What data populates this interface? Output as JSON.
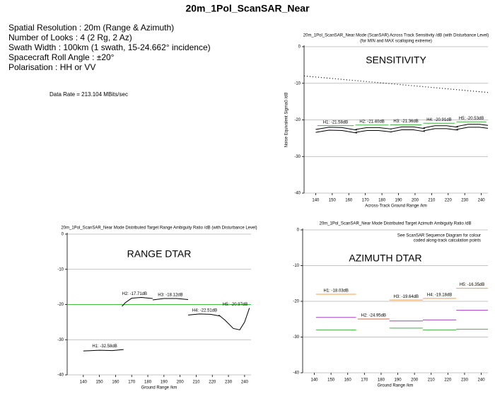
{
  "title": "20m_1Pol_ScanSAR_Near",
  "info": [
    "Spatial Resolution : 20m (Range & Azimuth)",
    "Number of Looks : 4 (2 Rg, 2 Az)",
    "Swath Width : 100km (1 swath, 15-24.662° incidence)",
    "Spacecraft Roll Angle : ±20°",
    "Polarisation : HH or VV"
  ],
  "data_rate": "Data Rate = 213.104 MBits/sec",
  "chart_data": [
    {
      "type": "line",
      "title": "20m_1Pol_ScanSAR_Near Mode (ScanSAR) Across Track Sensitivity /dB (with Disturbance Level)",
      "subtitle": "(for MIN and MAX scalloping extreme)",
      "label": "SENSITIVITY",
      "x_label": "Across-Track Ground Range /km",
      "y_label": "Noise Equivalent Sigma0 /dB",
      "xlim": [
        133,
        244
      ],
      "xticks": [
        140,
        150,
        160,
        170,
        180,
        190,
        200,
        210,
        220,
        230,
        240
      ],
      "ylim": [
        -40,
        0
      ],
      "yticks": [
        0,
        -10,
        -20,
        -30,
        -40
      ],
      "grid": true,
      "series": [
        {
          "color": "#000000",
          "style": "dotted",
          "x": [
            133,
            244
          ],
          "values": [
            -8,
            -12.5
          ]
        },
        {
          "name": "H1: -21.58dB",
          "color": "#40b040",
          "x": [
            141,
            163
          ],
          "values": [
            -21.58,
            -21.58
          ]
        },
        {
          "name": "H2: -21.40dB",
          "color": "#40b040",
          "x": [
            164,
            184
          ],
          "values": [
            -21.4,
            -21.4
          ]
        },
        {
          "name": "H3: -21.36dB",
          "color": "#40b040",
          "x": [
            185,
            204
          ],
          "values": [
            -21.36,
            -21.36
          ]
        },
        {
          "name": "H4: -20.91dB",
          "color": "#40b040",
          "x": [
            205,
            224
          ],
          "values": [
            -20.91,
            -20.91
          ]
        },
        {
          "name": "H5: -20.53dB",
          "color": "#40b040",
          "x": [
            225,
            243
          ],
          "values": [
            -20.53,
            -20.53
          ]
        },
        {
          "color": "#000000",
          "x": [
            140,
            148,
            156,
            165
          ],
          "values": [
            -22.6,
            -22.0,
            -22.1,
            -22.8
          ]
        },
        {
          "color": "#000000",
          "x": [
            140,
            148,
            156,
            165
          ],
          "values": [
            -23.4,
            -22.8,
            -22.9,
            -23.6
          ]
        },
        {
          "color": "#000000",
          "x": [
            164,
            171,
            178,
            186
          ],
          "values": [
            -22.6,
            -22.1,
            -22.1,
            -22.5
          ]
        },
        {
          "color": "#000000",
          "x": [
            164,
            171,
            178,
            186
          ],
          "values": [
            -23.4,
            -22.9,
            -22.9,
            -23.3
          ]
        },
        {
          "color": "#000000",
          "x": [
            185,
            192,
            199,
            206
          ],
          "values": [
            -22.5,
            -21.9,
            -21.9,
            -22.4
          ]
        },
        {
          "color": "#000000",
          "x": [
            185,
            192,
            199,
            206
          ],
          "values": [
            -23.3,
            -22.7,
            -22.7,
            -23.2
          ]
        },
        {
          "color": "#000000",
          "x": [
            205,
            212,
            219,
            226
          ],
          "values": [
            -22.2,
            -21.6,
            -21.6,
            -22.0
          ]
        },
        {
          "color": "#000000",
          "x": [
            205,
            212,
            219,
            226
          ],
          "values": [
            -23.0,
            -22.4,
            -22.4,
            -22.8
          ]
        },
        {
          "color": "#000000",
          "x": [
            225,
            232,
            239,
            244
          ],
          "values": [
            -21.8,
            -21.2,
            -21.2,
            -21.5
          ]
        },
        {
          "color": "#000000",
          "x": [
            225,
            232,
            239,
            244
          ],
          "values": [
            -22.6,
            -22.0,
            -22.0,
            -22.3
          ]
        }
      ]
    },
    {
      "type": "line",
      "title": "20m_1Pol_ScanSAR_Near Mode Distributed Target Range Ambiguity Ratio /dB (with Disturbance Level)",
      "label": "RANGE DTAR",
      "x_label": "Ground Range /km",
      "xlim": [
        130,
        244
      ],
      "xticks": [
        140,
        150,
        160,
        170,
        180,
        190,
        200,
        210,
        220,
        230,
        240
      ],
      "ylim": [
        -40,
        0
      ],
      "yticks": [
        0,
        -10,
        -20,
        -30,
        -40
      ],
      "grid": true,
      "series": [
        {
          "color": "#40c040",
          "x": [
            130,
            244
          ],
          "values": [
            -20,
            -20
          ]
        },
        {
          "name": "H1: -32.58dB",
          "color": "#000000",
          "x": [
            140,
            150,
            158,
            165
          ],
          "values": [
            -33.2,
            -33.0,
            -33.1,
            -32.8
          ]
        },
        {
          "name": "H2: -17.71dB",
          "color": "#000000",
          "x": [
            164,
            166,
            170,
            176,
            183
          ],
          "values": [
            -20.5,
            -19.5,
            -18.2,
            -18.0,
            -18.3
          ]
        },
        {
          "name": "H3: -18.12dB",
          "color": "#000000",
          "x": [
            183,
            190,
            198,
            205
          ],
          "values": [
            -18.7,
            -18.3,
            -18.3,
            -18.6
          ]
        },
        {
          "name": "H4: -22.51dB",
          "color": "#000000",
          "x": [
            205,
            212,
            219,
            225
          ],
          "values": [
            -23.0,
            -22.7,
            -22.8,
            -23.3
          ]
        },
        {
          "name": "H5: -20.97dB",
          "color": "#000000",
          "x": [
            224,
            228,
            233,
            237,
            240,
            243
          ],
          "values": [
            -23.0,
            -24.5,
            -26.8,
            -27.2,
            -25.0,
            -21.0
          ]
        }
      ]
    },
    {
      "type": "line",
      "title": "20m_1Pol_ScanSAR_Near Mode Distributed Target Azimuth Ambiguity Ratio /dB",
      "subtitle": "See ScanSAR Sequence Diagram for colour",
      "subtitle2": "coded along-track calculation points",
      "label": "AZIMUTH DTAR",
      "x_label": "Ground Range /km",
      "xlim": [
        133,
        244
      ],
      "xticks": [
        140,
        150,
        160,
        170,
        180,
        190,
        200,
        210,
        220,
        230,
        240
      ],
      "ylim": [
        -40,
        0
      ],
      "yticks": [
        0,
        -10,
        -20,
        -30,
        -40
      ],
      "grid": true,
      "series": [
        {
          "name": "H1: -18.03dB",
          "color": "#f0a040",
          "x": [
            141,
            165
          ],
          "values": [
            -18.03,
            -18.03
          ]
        },
        {
          "name": "H2: -24.95dB",
          "color": "#c07040",
          "x": [
            166,
            185
          ],
          "values": [
            -24.95,
            -24.95
          ]
        },
        {
          "name": "H3: -19.64dB",
          "color": "#f0a040",
          "x": [
            185,
            205
          ],
          "values": [
            -19.64,
            -19.64
          ]
        },
        {
          "name": "H4: -19.18dB",
          "color": "#f0a040",
          "x": [
            205,
            225
          ],
          "values": [
            -19.18,
            -19.18
          ]
        },
        {
          "name": "H5: -16.35dB",
          "color": "#f0a040",
          "x": [
            225,
            244
          ],
          "values": [
            -16.35,
            -16.35
          ]
        },
        {
          "color": "#a040c0",
          "x": [
            141,
            165
          ],
          "values": [
            -24.5,
            -24.5
          ]
        },
        {
          "color": "#a040c0",
          "x": [
            185,
            205
          ],
          "values": [
            -25.5,
            -25.5
          ]
        },
        {
          "color": "#a040c0",
          "x": [
            205,
            225
          ],
          "values": [
            -25.2,
            -25.2
          ]
        },
        {
          "color": "#a040c0",
          "x": [
            225,
            244
          ],
          "values": [
            -22.5,
            -22.5
          ]
        },
        {
          "color": "#40b040",
          "x": [
            141,
            165
          ],
          "values": [
            -28,
            -28
          ]
        },
        {
          "color": "#40b040",
          "x": [
            185,
            205
          ],
          "values": [
            -27.5,
            -27.5
          ]
        },
        {
          "color": "#40b040",
          "x": [
            205,
            225
          ],
          "values": [
            -28,
            -28
          ]
        },
        {
          "color": "#40b040",
          "x": [
            225,
            244
          ],
          "values": [
            -27.8,
            -27.8
          ]
        }
      ]
    }
  ]
}
